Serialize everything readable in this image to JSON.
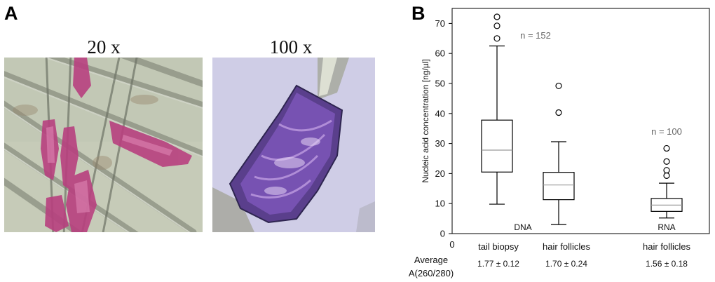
{
  "panel_a": {
    "letter": "A",
    "images": [
      {
        "magnification": "20 x",
        "content": "microscopy image of stained hair follicles"
      },
      {
        "magnification": "100 x",
        "content": "microscopy image of a single stained hair follicle"
      }
    ]
  },
  "panel_b": {
    "letter": "B"
  },
  "chart_data": {
    "type": "box",
    "ylabel": "Nucleic acid concentration [ng/µl]",
    "ylim": [
      0,
      75
    ],
    "yticks": [
      0,
      10,
      20,
      30,
      40,
      50,
      60,
      70
    ],
    "x_origin_label": "0",
    "grid": false,
    "categories": [
      "tail biopsy",
      "hair follicles",
      "hair follicles"
    ],
    "group_labels": [
      "DNA",
      "RNA"
    ],
    "n_labels": [
      "n = 152",
      "n = 100"
    ],
    "boxes": [
      {
        "category": "tail biopsy",
        "whisker_low": 9.8,
        "q1": 20.5,
        "median": 27.8,
        "q3": 37.8,
        "whisker_high": 62.5,
        "outliers": [
          65,
          69.2,
          72.2
        ]
      },
      {
        "category": "hair follicles",
        "whisker_low": 3,
        "q1": 11.3,
        "median": 16.2,
        "q3": 20.4,
        "whisker_high": 30.6,
        "outliers": [
          40.3,
          49.2
        ]
      },
      {
        "category": "hair follicles",
        "whisker_low": 5.2,
        "q1": 7.4,
        "median": 9.5,
        "q3": 11.7,
        "whisker_high": 16.8,
        "outliers": [
          19.3,
          21.1,
          24,
          28.4
        ]
      }
    ],
    "average_label": [
      "Average",
      "A(260/280)"
    ],
    "averages": [
      "1.77 ± 0.12",
      "1.70 ± 0.24",
      "1.56 ± 0.18"
    ]
  }
}
